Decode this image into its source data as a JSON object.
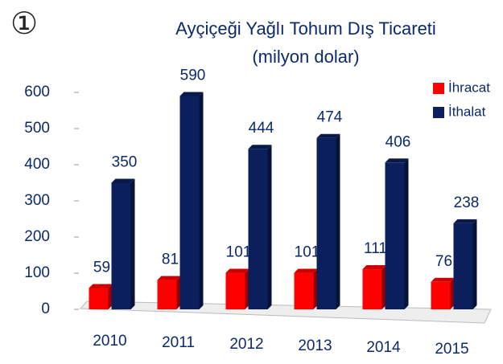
{
  "marker": "①",
  "chart_data": {
    "type": "bar",
    "title": "Ayçiçeği Yağlı Tohum Dış Ticareti",
    "subtitle": "(milyon dolar)",
    "categories": [
      "2010",
      "2011",
      "2012",
      "2013",
      "2014",
      "2015"
    ],
    "series": [
      {
        "name": "İhracat",
        "color": "#ff0000",
        "values": [
          59,
          81,
          101,
          101,
          111,
          76
        ]
      },
      {
        "name": "İthalat",
        "color": "#0a1f5c",
        "values": [
          350,
          590,
          444,
          474,
          406,
          238
        ]
      }
    ],
    "ylim": [
      0,
      600
    ],
    "yticks": [
      0,
      100,
      200,
      300,
      400,
      500,
      600
    ],
    "legend": "top-right"
  }
}
